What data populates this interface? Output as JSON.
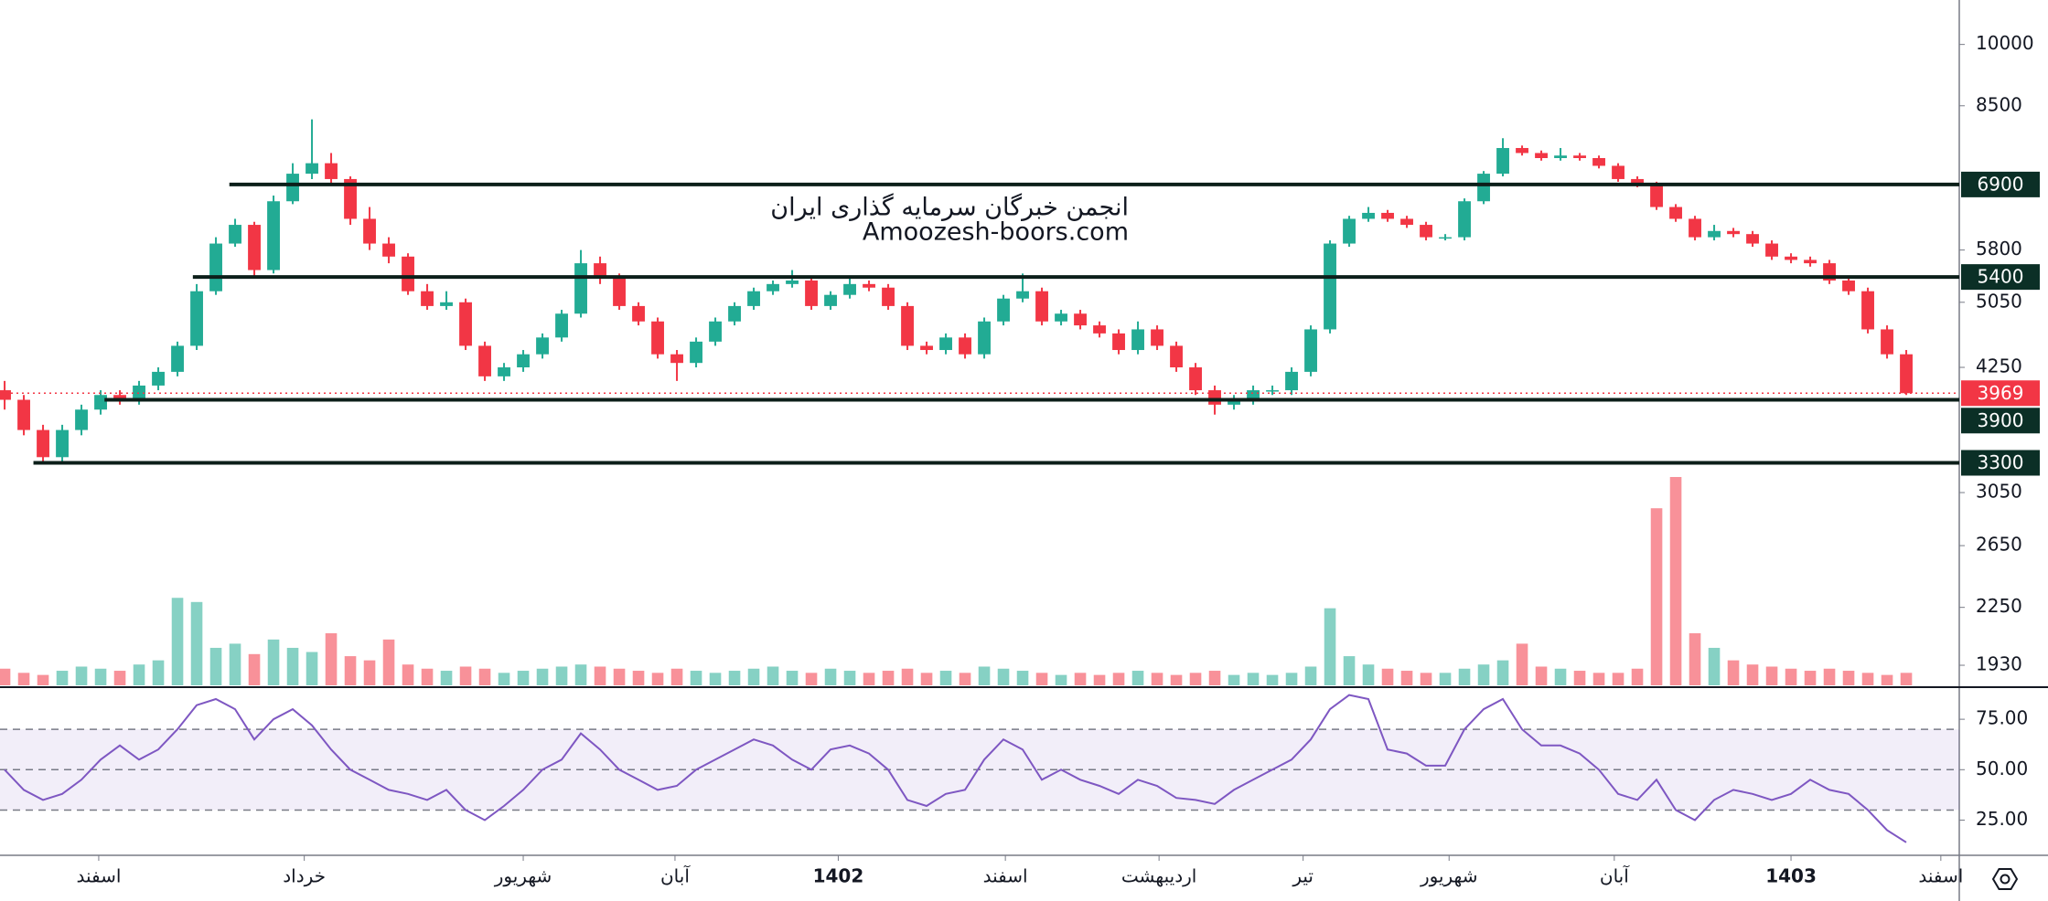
{
  "chart_data": [
    {
      "type": "candlestick",
      "scale": "log",
      "ylim": [
        1830,
        11250
      ],
      "xlim": [
        -0.24,
        101.76
      ],
      "up_color": "#22ab94",
      "down_color": "#f23645",
      "yticks": [
        10000,
        8500,
        5800,
        5050,
        4250,
        3050,
        2650,
        2250,
        1930
      ],
      "levels": [
        {
          "value": 6900,
          "x_start": 11.7
        },
        {
          "value": 5400,
          "x_start": 9.8
        },
        {
          "value": 3900,
          "x_start": 5.2
        },
        {
          "value": 3300,
          "x_start": 1.5
        }
      ],
      "watermark": [
        "انجمن خبرگان سرمایه گذاری ایران",
        "Amoozesh-boors.com"
      ],
      "candles": [
        [
          4000,
          4100,
          3800,
          3900
        ],
        [
          3900,
          3950,
          3550,
          3600
        ],
        [
          3600,
          3650,
          3300,
          3350
        ],
        [
          3350,
          3650,
          3300,
          3600
        ],
        [
          3600,
          3850,
          3550,
          3800
        ],
        [
          3800,
          4000,
          3750,
          3950
        ],
        [
          3950,
          4000,
          3850,
          3900
        ],
        [
          3900,
          4100,
          3850,
          4050
        ],
        [
          4050,
          4250,
          4000,
          4200
        ],
        [
          4200,
          4550,
          4150,
          4500
        ],
        [
          4500,
          5300,
          4450,
          5200
        ],
        [
          5200,
          6000,
          5150,
          5900
        ],
        [
          5900,
          6300,
          5850,
          6200
        ],
        [
          6200,
          6250,
          5400,
          5500
        ],
        [
          5500,
          6700,
          5450,
          6600
        ],
        [
          6600,
          7300,
          6550,
          7100
        ],
        [
          7100,
          8200,
          7000,
          7300
        ],
        [
          7300,
          7500,
          6900,
          7000
        ],
        [
          7000,
          7050,
          6200,
          6300
        ],
        [
          6300,
          6500,
          5800,
          5900
        ],
        [
          5900,
          6000,
          5600,
          5700
        ],
        [
          5700,
          5750,
          5150,
          5200
        ],
        [
          5200,
          5300,
          4950,
          5000
        ],
        [
          5000,
          5200,
          4950,
          5050
        ],
        [
          5050,
          5100,
          4450,
          4500
        ],
        [
          4500,
          4550,
          4100,
          4150
        ],
        [
          4150,
          4300,
          4100,
          4250
        ],
        [
          4250,
          4450,
          4200,
          4400
        ],
        [
          4400,
          4650,
          4350,
          4600
        ],
        [
          4600,
          4950,
          4550,
          4900
        ],
        [
          4900,
          5800,
          4850,
          5600
        ],
        [
          5600,
          5700,
          5300,
          5400
        ],
        [
          5400,
          5450,
          4950,
          5000
        ],
        [
          5000,
          5050,
          4750,
          4800
        ],
        [
          4800,
          4850,
          4350,
          4400
        ],
        [
          4400,
          4450,
          4100,
          4300
        ],
        [
          4300,
          4600,
          4250,
          4550
        ],
        [
          4550,
          4850,
          4500,
          4800
        ],
        [
          4800,
          5050,
          4750,
          5000
        ],
        [
          5000,
          5250,
          4950,
          5200
        ],
        [
          5200,
          5350,
          5150,
          5300
        ],
        [
          5300,
          5500,
          5250,
          5350
        ],
        [
          5350,
          5400,
          4950,
          5000
        ],
        [
          5000,
          5200,
          4950,
          5150
        ],
        [
          5150,
          5400,
          5100,
          5300
        ],
        [
          5300,
          5350,
          5200,
          5250
        ],
        [
          5250,
          5300,
          4950,
          5000
        ],
        [
          5000,
          5050,
          4450,
          4500
        ],
        [
          4500,
          4550,
          4400,
          4450
        ],
        [
          4450,
          4650,
          4400,
          4600
        ],
        [
          4600,
          4650,
          4350,
          4400
        ],
        [
          4400,
          4850,
          4350,
          4800
        ],
        [
          4800,
          5150,
          4750,
          5100
        ],
        [
          5100,
          5450,
          5050,
          5200
        ],
        [
          5200,
          5250,
          4750,
          4800
        ],
        [
          4800,
          4950,
          4750,
          4900
        ],
        [
          4900,
          4950,
          4700,
          4750
        ],
        [
          4750,
          4800,
          4600,
          4650
        ],
        [
          4650,
          4700,
          4400,
          4450
        ],
        [
          4450,
          4800,
          4400,
          4700
        ],
        [
          4700,
          4750,
          4450,
          4500
        ],
        [
          4500,
          4550,
          4200,
          4250
        ],
        [
          4250,
          4300,
          3950,
          4000
        ],
        [
          4000,
          4050,
          3750,
          3850
        ],
        [
          3850,
          3950,
          3800,
          3900
        ],
        [
          3900,
          4050,
          3850,
          4000
        ],
        [
          4000,
          4050,
          3950,
          4000
        ],
        [
          4000,
          4250,
          3950,
          4200
        ],
        [
          4200,
          4750,
          4150,
          4700
        ],
        [
          4700,
          5950,
          4650,
          5900
        ],
        [
          5900,
          6350,
          5850,
          6300
        ],
        [
          6300,
          6500,
          6250,
          6400
        ],
        [
          6400,
          6450,
          6250,
          6300
        ],
        [
          6300,
          6350,
          6150,
          6200
        ],
        [
          6200,
          6250,
          5950,
          6000
        ],
        [
          6000,
          6050,
          5950,
          6000
        ],
        [
          6000,
          6650,
          5950,
          6600
        ],
        [
          6600,
          7150,
          6550,
          7100
        ],
        [
          7100,
          7800,
          7050,
          7600
        ],
        [
          7600,
          7650,
          7450,
          7500
        ],
        [
          7500,
          7550,
          7350,
          7400
        ],
        [
          7400,
          7600,
          7350,
          7450
        ],
        [
          7450,
          7500,
          7350,
          7400
        ],
        [
          7400,
          7450,
          7200,
          7250
        ],
        [
          7250,
          7300,
          6950,
          7000
        ],
        [
          7000,
          7050,
          6850,
          6900
        ],
        [
          6900,
          6950,
          6450,
          6500
        ],
        [
          6500,
          6550,
          6250,
          6300
        ],
        [
          6300,
          6350,
          5950,
          6000
        ],
        [
          6000,
          6200,
          5950,
          6100
        ],
        [
          6100,
          6150,
          6000,
          6050
        ],
        [
          6050,
          6100,
          5850,
          5900
        ],
        [
          5900,
          5950,
          5650,
          5700
        ],
        [
          5700,
          5750,
          5600,
          5650
        ],
        [
          5650,
          5700,
          5550,
          5600
        ],
        [
          5600,
          5650,
          5300,
          5350
        ],
        [
          5350,
          5400,
          5150,
          5200
        ],
        [
          5200,
          5250,
          4650,
          4700
        ],
        [
          4700,
          4750,
          4350,
          4400
        ],
        [
          4400,
          4450,
          3950,
          3969
        ]
      ]
    },
    {
      "type": "bar",
      "ylim": [
        0,
        100
      ],
      "values": [
        8,
        6,
        5,
        7,
        9,
        8,
        7,
        10,
        12,
        42,
        40,
        18,
        20,
        15,
        22,
        18,
        16,
        25,
        14,
        12,
        22,
        10,
        8,
        7,
        9,
        8,
        6,
        7,
        8,
        9,
        10,
        9,
        8,
        7,
        6,
        8,
        7,
        6,
        7,
        8,
        9,
        7,
        6,
        8,
        7,
        6,
        7,
        8,
        6,
        7,
        6,
        9,
        8,
        7,
        6,
        5,
        6,
        5,
        6,
        7,
        6,
        5,
        6,
        7,
        5,
        6,
        5,
        6,
        9,
        37,
        14,
        10,
        8,
        7,
        6,
        6,
        8,
        10,
        12,
        20,
        9,
        8,
        7,
        6,
        6,
        8,
        85,
        100,
        25,
        18,
        12,
        10,
        9,
        8,
        7,
        8,
        7,
        6,
        5,
        6
      ]
    },
    {
      "type": "line",
      "color": "#7e57c2",
      "ylim": [
        8,
        90
      ],
      "levels": [
        30,
        50,
        70
      ],
      "yticks": [
        {
          "value": 25,
          "label": "25.00"
        },
        {
          "value": 50,
          "label": "50.00"
        },
        {
          "value": 75,
          "label": "75.00"
        }
      ],
      "xticks": [
        {
          "value": 4.9,
          "label": "اسفند"
        },
        {
          "value": 15.6,
          "label": "خرداد"
        },
        {
          "value": 27,
          "label": "شهریور"
        },
        {
          "value": 34.9,
          "label": "آبان"
        },
        {
          "value": 43.4,
          "label": "1402"
        },
        {
          "value": 52.1,
          "label": "اسفند"
        },
        {
          "value": 60.1,
          "label": "اردیبهشت"
        },
        {
          "value": 67.6,
          "label": "تیر"
        },
        {
          "value": 75.2,
          "label": "شهریور"
        },
        {
          "value": 83.8,
          "label": "آبان"
        },
        {
          "value": 93,
          "label": "1403"
        },
        {
          "value": 100.8,
          "label": "اسفند"
        }
      ],
      "values": [
        50,
        40,
        35,
        38,
        45,
        55,
        62,
        55,
        60,
        70,
        82,
        85,
        80,
        65,
        75,
        80,
        72,
        60,
        50,
        45,
        40,
        38,
        35,
        40,
        30,
        25,
        32,
        40,
        50,
        55,
        68,
        60,
        50,
        45,
        40,
        42,
        50,
        55,
        60,
        65,
        62,
        55,
        50,
        60,
        62,
        58,
        50,
        35,
        32,
        38,
        40,
        55,
        65,
        60,
        45,
        50,
        45,
        42,
        38,
        45,
        42,
        36,
        35,
        33,
        40,
        45,
        50,
        55,
        65,
        80,
        87,
        85,
        60,
        58,
        52,
        52,
        70,
        80,
        85,
        70,
        62,
        62,
        58,
        50,
        38,
        35,
        45,
        30,
        25,
        35,
        40,
        38,
        35,
        38,
        45,
        40,
        38,
        30,
        20,
        14
      ]
    }
  ]
}
